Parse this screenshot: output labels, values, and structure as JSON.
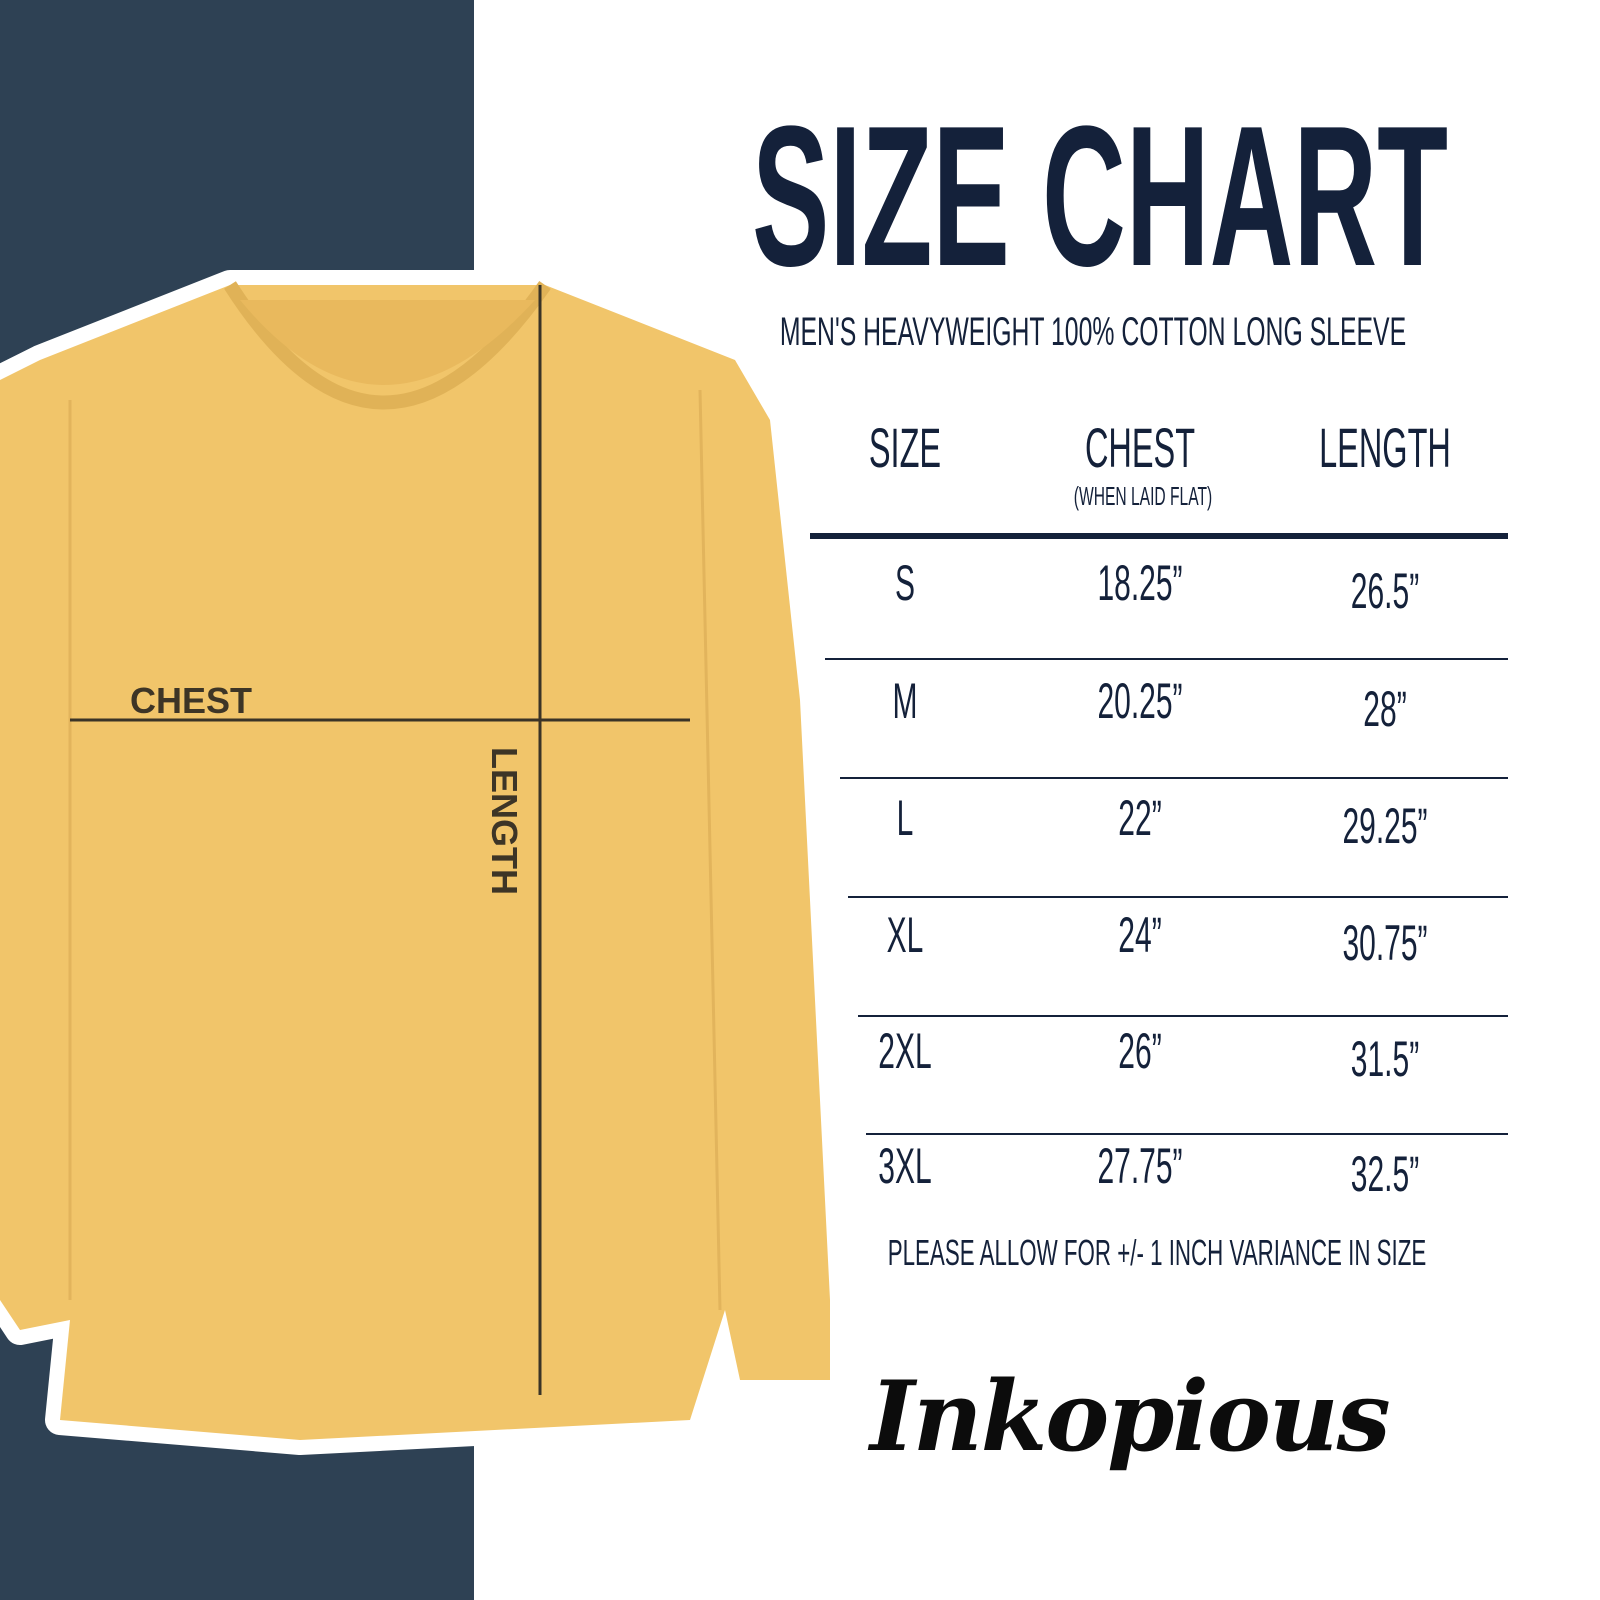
{
  "title": "SIZE CHART",
  "subtitle": "MEN'S HEAVYWEIGHT 100% COTTON LONG SLEEVE",
  "diagram": {
    "chest_label": "CHEST",
    "length_label": "LENGTH"
  },
  "table": {
    "headers": {
      "size": "SIZE",
      "chest": "CHEST",
      "chest_note": "(WHEN LAID FLAT)",
      "length": "LENGTH"
    },
    "rows": [
      {
        "size": "S",
        "chest": "18.25”",
        "length": "26.5”"
      },
      {
        "size": "M",
        "chest": "20.25”",
        "length": "28”"
      },
      {
        "size": "L",
        "chest": "22”",
        "length": "29.25”"
      },
      {
        "size": "XL",
        "chest": "24”",
        "length": "30.75”"
      },
      {
        "size": "2XL",
        "chest": "26”",
        "length": "31.5”"
      },
      {
        "size": "3XL",
        "chest": "27.75”",
        "length": "32.5”"
      }
    ]
  },
  "note": "PLEASE ALLOW FOR +/- 1 INCH VARIANCE IN SIZE",
  "brand": "Inkopious",
  "colors": {
    "panel": "#2e4154",
    "text": "#14213a",
    "shirt": "#f1c56a"
  }
}
